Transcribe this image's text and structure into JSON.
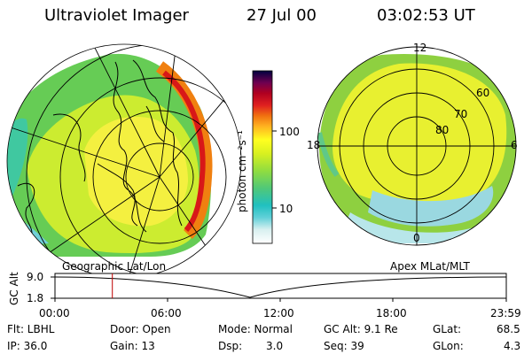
{
  "header": {
    "title": "Ultraviolet Imager",
    "date": "27 Jul 00",
    "time": "03:02:53 UT"
  },
  "colorbar": {
    "unit_label": "photon cm⁻²s⁻¹",
    "ticks": [
      "100",
      "10"
    ]
  },
  "left_panel": {
    "caption": "Geographic Lat/Lon"
  },
  "right_panel": {
    "caption": "Apex MLat/MLT",
    "mlt_labels": [
      "12",
      "18",
      "6",
      "0"
    ],
    "mlat_labels": [
      "60",
      "70",
      "80"
    ]
  },
  "orbit_plot": {
    "ylabel": "GC Alt",
    "y_ticks": [
      "9.0",
      "1.8"
    ],
    "x_ticks": [
      "00:00",
      "06:00",
      "12:00",
      "18:00",
      "23:59"
    ],
    "marker_time_hours": 3.05,
    "colors": {
      "marker": "#c00000"
    }
  },
  "info": {
    "filter": "Flt: LBHL",
    "ip": "IP: 36.0",
    "door": "Door: Open",
    "gain": "Gain: 13",
    "mode": "Mode: Normal",
    "dsp_label": "Dsp:",
    "dsp_value": "3.0",
    "gc_alt": "GC Alt: 9.1 Re",
    "seq": "Seq: 39",
    "glat_label": "GLat:",
    "glat_value": "68.5",
    "glon_label": "GLon:",
    "glon_value": "4.3"
  }
}
